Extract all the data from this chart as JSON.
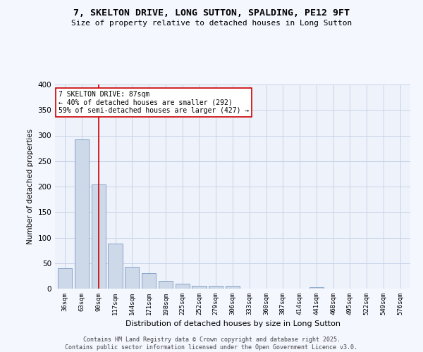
{
  "title_line1": "7, SKELTON DRIVE, LONG SUTTON, SPALDING, PE12 9FT",
  "title_line2": "Size of property relative to detached houses in Long Sutton",
  "xlabel": "Distribution of detached houses by size in Long Sutton",
  "ylabel": "Number of detached properties",
  "categories": [
    "36sqm",
    "63sqm",
    "90sqm",
    "117sqm",
    "144sqm",
    "171sqm",
    "198sqm",
    "225sqm",
    "252sqm",
    "279sqm",
    "306sqm",
    "333sqm",
    "360sqm",
    "387sqm",
    "414sqm",
    "441sqm",
    "468sqm",
    "495sqm",
    "522sqm",
    "549sqm",
    "576sqm"
  ],
  "values": [
    40,
    292,
    204,
    88,
    43,
    30,
    15,
    9,
    5,
    6,
    5,
    0,
    0,
    0,
    0,
    3,
    0,
    0,
    0,
    0,
    0
  ],
  "bar_color": "#cdd8e8",
  "bar_edge_color": "#7a9cc4",
  "vline_x": 2,
  "vline_color": "#cc0000",
  "annotation_text": "7 SKELTON DRIVE: 87sqm\n← 40% of detached houses are smaller (292)\n59% of semi-detached houses are larger (427) →",
  "ylim": [
    0,
    400
  ],
  "yticks": [
    0,
    50,
    100,
    150,
    200,
    250,
    300,
    350,
    400
  ],
  "bg_color": "#eef2fa",
  "grid_color": "#c8d4e8",
  "fig_bg_color": "#f5f7ff",
  "footer_line1": "Contains HM Land Registry data © Crown copyright and database right 2025.",
  "footer_line2": "Contains public sector information licensed under the Open Government Licence v3.0."
}
